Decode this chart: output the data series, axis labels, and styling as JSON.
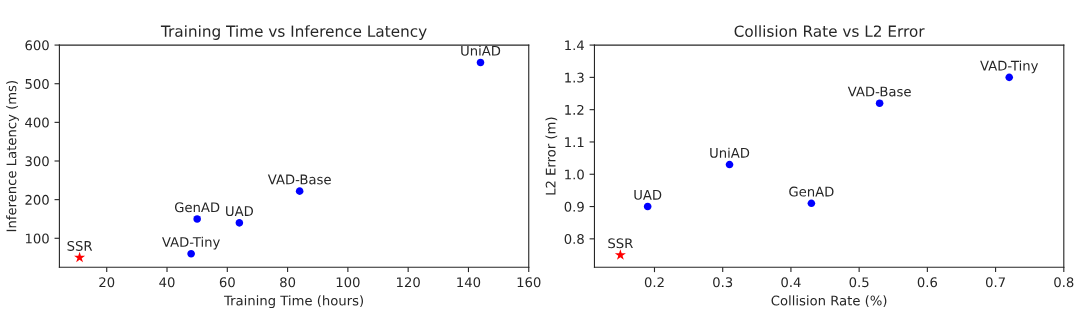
{
  "chart_data": [
    {
      "type": "scatter",
      "title": "Training Time vs Inference Latency",
      "xlabel": "Training Time (hours)",
      "ylabel": "Inference Latency (ms)",
      "xlim": [
        4.3,
        160
      ],
      "ylim": [
        25,
        600
      ],
      "xticks": [
        20,
        40,
        60,
        80,
        100,
        120,
        140,
        160
      ],
      "yticks": [
        100,
        200,
        300,
        400,
        500,
        600
      ],
      "grid": false,
      "legend": false,
      "series": [
        {
          "color": "#ff0000",
          "marker": "star",
          "x": [
            11
          ],
          "values": [
            50
          ]
        },
        {
          "color": "#0000ff",
          "marker": "circle",
          "x": [
            48,
            50,
            64,
            84,
            144
          ],
          "values": [
            60,
            150,
            140,
            222,
            555
          ]
        }
      ],
      "annotations": [
        {
          "text": "SSR",
          "x": 11,
          "y": 50
        },
        {
          "text": "VAD-Tiny",
          "x": 48,
          "y": 60
        },
        {
          "text": "GenAD",
          "x": 50,
          "y": 150
        },
        {
          "text": "UAD",
          "x": 64,
          "y": 140
        },
        {
          "text": "VAD-Base",
          "x": 84,
          "y": 222
        },
        {
          "text": "UniAD",
          "x": 144,
          "y": 555
        }
      ]
    },
    {
      "type": "scatter",
      "title": "Collision Rate vs L2 Error",
      "xlabel": "Collision Rate (%)",
      "ylabel": "L2 Error (m)",
      "xlim": [
        0.112,
        0.8
      ],
      "ylim": [
        0.712,
        1.4
      ],
      "xticks": [
        0.2,
        0.3,
        0.4,
        0.5,
        0.6,
        0.7,
        0.8
      ],
      "yticks": [
        {
          "value": 0.8,
          "label": "0.8"
        },
        {
          "value": 0.9,
          "label": "0.9"
        },
        {
          "value": 1.0,
          "label": "1.0"
        },
        {
          "value": 1.1,
          "label": "1.1"
        },
        {
          "value": 1.2,
          "label": "1.2"
        },
        {
          "value": 1.3,
          "label": "1.3"
        },
        {
          "value": 1.4,
          "label": "1.4"
        }
      ],
      "grid": false,
      "legend": false,
      "series": [
        {
          "color": "#ff0000",
          "marker": "star",
          "x": [
            0.15
          ],
          "values": [
            0.75
          ]
        },
        {
          "color": "#0000ff",
          "marker": "circle",
          "x": [
            0.19,
            0.31,
            0.43,
            0.53,
            0.72
          ],
          "values": [
            0.9,
            1.03,
            0.91,
            1.22,
            1.3
          ]
        }
      ],
      "annotations": [
        {
          "text": "SSR",
          "x": 0.15,
          "y": 0.75
        },
        {
          "text": "UAD",
          "x": 0.19,
          "y": 0.9
        },
        {
          "text": "UniAD",
          "x": 0.31,
          "y": 1.03
        },
        {
          "text": "GenAD",
          "x": 0.43,
          "y": 0.91
        },
        {
          "text": "VAD-Base",
          "x": 0.53,
          "y": 1.22
        },
        {
          "text": "VAD-Tiny",
          "x": 0.72,
          "y": 1.3
        }
      ]
    }
  ]
}
